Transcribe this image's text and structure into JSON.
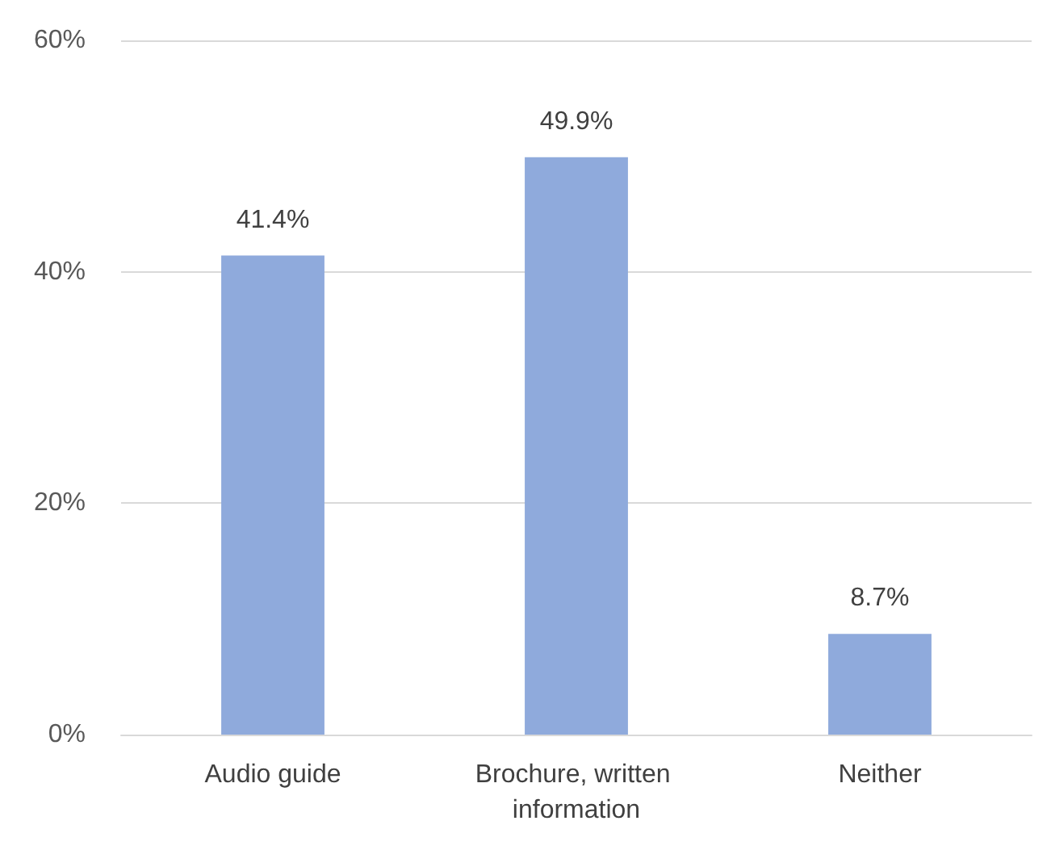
{
  "chart_data": {
    "type": "bar",
    "categories": [
      "Audio guide",
      "Brochure, written information",
      "Neither"
    ],
    "values": [
      41.4,
      49.9,
      8.7
    ],
    "value_labels": [
      "41.4%",
      "49.9%",
      "8.7%"
    ],
    "color": "#8faadc",
    "ylim": [
      0,
      60
    ],
    "yticks": [
      {
        "value": 0,
        "label": "0%"
      },
      {
        "value": 20,
        "label": "20%"
      },
      {
        "value": 40,
        "label": "40%"
      },
      {
        "value": 60,
        "label": "60%"
      }
    ],
    "grid": "y"
  }
}
